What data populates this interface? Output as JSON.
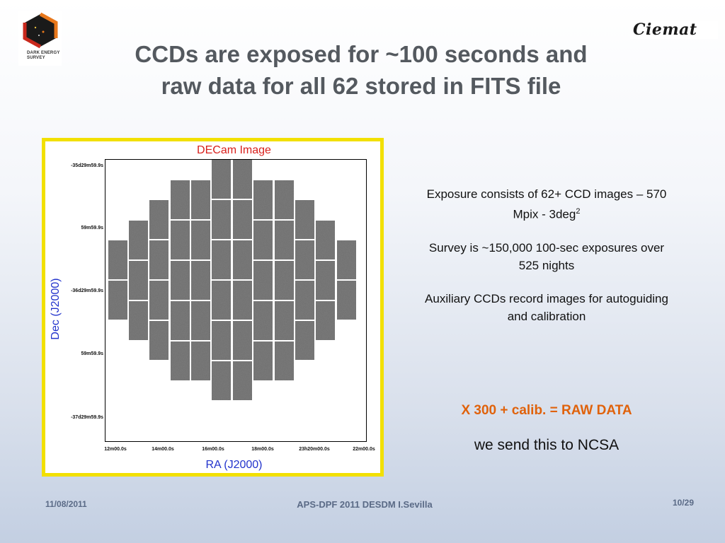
{
  "logos": {
    "des": {
      "line1": "DARK ENERGY",
      "line2": "SURVEY"
    },
    "ciemat": {
      "text": "Ciemat"
    }
  },
  "title": {
    "line1": "CCDs are exposed for ~100 seconds and",
    "line2": "raw data for all 62 stored in FITS file"
  },
  "figure": {
    "title": "DECam Image",
    "xlabel": "RA  (J2000)",
    "ylabel": "Dec  (J2000)",
    "yticks": [
      "-35d29m59.9s",
      "59m59.9s",
      "-36d29m59.9s",
      "59m59.9s",
      "-37d29m59.9s"
    ],
    "xticks": [
      "12m00.0s",
      "14m00.0s",
      "16m00.0s",
      "18m00.0s",
      "23h20m00.0s",
      "22m00.0s"
    ],
    "colors": {
      "frame": "#f2e000",
      "title": "#d8201c",
      "axis_label": "#2233cc",
      "ccd": "#6e6e6e"
    }
  },
  "bullets": [
    {
      "text": "Exposure consists of 62+ CCD images – 570 Mpix - 3deg",
      "sup": "2"
    },
    {
      "text": "Survey is ~150,000 100-sec exposures over 525 nights"
    },
    {
      "text": "Auxiliary CCDs record images for autoguiding and calibration"
    }
  ],
  "highlight": {
    "text": "X 300 + calib.  = RAW DATA",
    "color": "#e0620b"
  },
  "note": {
    "text": "we send this to NCSA"
  },
  "footer": {
    "date": "11/08/2011",
    "center": "APS-DPF 2011 DESDM I.Sevilla",
    "page": "10/29"
  }
}
